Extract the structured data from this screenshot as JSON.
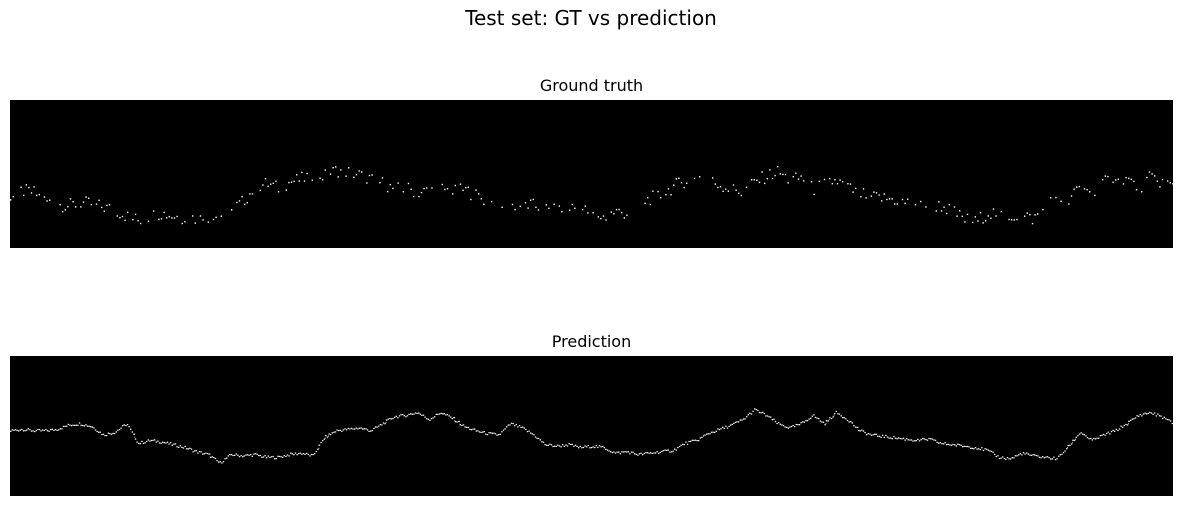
{
  "figure_title": "Test set: GT vs prediction",
  "colors": {
    "background": "#000000",
    "trace": "#ffffff"
  },
  "chart_data": [
    {
      "type": "heatmap",
      "title": "Ground truth",
      "style": "sparse-dots",
      "xlim": [
        0,
        1
      ],
      "ylim": [
        0,
        1
      ],
      "grid": false,
      "y_is_height_from_bottom": true,
      "profile": [
        [
          0.0,
          0.36
        ],
        [
          0.01,
          0.39
        ],
        [
          0.02,
          0.38
        ],
        [
          0.03,
          0.32
        ],
        [
          0.04,
          0.3
        ],
        [
          0.05,
          0.29
        ],
        [
          0.06,
          0.31
        ],
        [
          0.07,
          0.3
        ],
        [
          0.08,
          0.28
        ],
        [
          0.09,
          0.26
        ],
        [
          0.1,
          0.22
        ],
        [
          0.11,
          0.19
        ],
        [
          0.12,
          0.22
        ],
        [
          0.13,
          0.24
        ],
        [
          0.14,
          0.22
        ],
        [
          0.15,
          0.21
        ],
        [
          0.16,
          0.2
        ],
        [
          0.17,
          0.2
        ],
        [
          0.18,
          0.22
        ],
        [
          0.19,
          0.26
        ],
        [
          0.2,
          0.32
        ],
        [
          0.21,
          0.41
        ],
        [
          0.22,
          0.44
        ],
        [
          0.23,
          0.41
        ],
        [
          0.24,
          0.45
        ],
        [
          0.25,
          0.47
        ],
        [
          0.26,
          0.5
        ],
        [
          0.27,
          0.49
        ],
        [
          0.28,
          0.53
        ],
        [
          0.29,
          0.52
        ],
        [
          0.3,
          0.5
        ],
        [
          0.31,
          0.47
        ],
        [
          0.32,
          0.44
        ],
        [
          0.33,
          0.4
        ],
        [
          0.34,
          0.41
        ],
        [
          0.35,
          0.38
        ],
        [
          0.36,
          0.39
        ],
        [
          0.37,
          0.41
        ],
        [
          0.38,
          0.38
        ],
        [
          0.39,
          0.4
        ],
        [
          0.4,
          0.36
        ],
        [
          0.41,
          0.32
        ],
        [
          0.42,
          0.3
        ],
        [
          0.43,
          0.29
        ],
        [
          0.44,
          0.3
        ],
        [
          0.45,
          0.29
        ],
        [
          0.46,
          0.27
        ],
        [
          0.47,
          0.25
        ],
        [
          0.48,
          0.28
        ],
        [
          0.49,
          0.27
        ],
        [
          0.5,
          0.24
        ],
        [
          0.51,
          0.21
        ],
        [
          0.52,
          0.25
        ],
        [
          0.53,
          0.24
        ],
        [
          0.54,
          0.3
        ],
        [
          0.55,
          0.34
        ],
        [
          0.56,
          0.36
        ],
        [
          0.57,
          0.42
        ],
        [
          0.58,
          0.46
        ],
        [
          0.59,
          0.49
        ],
        [
          0.6,
          0.46
        ],
        [
          0.61,
          0.43
        ],
        [
          0.62,
          0.4
        ],
        [
          0.63,
          0.38
        ],
        [
          0.64,
          0.45
        ],
        [
          0.65,
          0.49
        ],
        [
          0.66,
          0.52
        ],
        [
          0.67,
          0.46
        ],
        [
          0.68,
          0.48
        ],
        [
          0.69,
          0.4
        ],
        [
          0.7,
          0.44
        ],
        [
          0.71,
          0.46
        ],
        [
          0.72,
          0.41
        ],
        [
          0.73,
          0.37
        ],
        [
          0.74,
          0.35
        ],
        [
          0.75,
          0.34
        ],
        [
          0.76,
          0.33
        ],
        [
          0.77,
          0.31
        ],
        [
          0.78,
          0.3
        ],
        [
          0.79,
          0.29
        ],
        [
          0.8,
          0.29
        ],
        [
          0.81,
          0.25
        ],
        [
          0.82,
          0.2
        ],
        [
          0.83,
          0.18
        ],
        [
          0.84,
          0.24
        ],
        [
          0.85,
          0.24
        ],
        [
          0.86,
          0.22
        ],
        [
          0.87,
          0.22
        ],
        [
          0.88,
          0.2
        ],
        [
          0.89,
          0.29
        ],
        [
          0.9,
          0.36
        ],
        [
          0.91,
          0.32
        ],
        [
          0.92,
          0.43
        ],
        [
          0.93,
          0.39
        ],
        [
          0.94,
          0.44
        ],
        [
          0.95,
          0.5
        ],
        [
          0.96,
          0.47
        ],
        [
          0.97,
          0.41
        ],
        [
          0.98,
          0.48
        ],
        [
          0.99,
          0.45
        ],
        [
          1.0,
          0.42
        ]
      ]
    },
    {
      "type": "heatmap",
      "title": "Prediction",
      "style": "connected-trace",
      "xlim": [
        0,
        1
      ],
      "ylim": [
        0,
        1
      ],
      "grid": false,
      "y_is_height_from_bottom": true,
      "profile": [
        [
          0.0,
          0.47
        ],
        [
          0.01,
          0.48
        ],
        [
          0.02,
          0.47
        ],
        [
          0.03,
          0.47
        ],
        [
          0.04,
          0.48
        ],
        [
          0.05,
          0.51
        ],
        [
          0.06,
          0.52
        ],
        [
          0.07,
          0.5
        ],
        [
          0.08,
          0.44
        ],
        [
          0.09,
          0.46
        ],
        [
          0.1,
          0.52
        ],
        [
          0.11,
          0.38
        ],
        [
          0.12,
          0.4
        ],
        [
          0.13,
          0.39
        ],
        [
          0.14,
          0.37
        ],
        [
          0.15,
          0.35
        ],
        [
          0.16,
          0.32
        ],
        [
          0.17,
          0.3
        ],
        [
          0.18,
          0.24
        ],
        [
          0.19,
          0.3
        ],
        [
          0.2,
          0.29
        ],
        [
          0.21,
          0.3
        ],
        [
          0.22,
          0.28
        ],
        [
          0.23,
          0.28
        ],
        [
          0.24,
          0.3
        ],
        [
          0.25,
          0.31
        ],
        [
          0.26,
          0.29
        ],
        [
          0.27,
          0.42
        ],
        [
          0.28,
          0.47
        ],
        [
          0.29,
          0.48
        ],
        [
          0.3,
          0.49
        ],
        [
          0.31,
          0.47
        ],
        [
          0.32,
          0.52
        ],
        [
          0.33,
          0.57
        ],
        [
          0.34,
          0.58
        ],
        [
          0.35,
          0.6
        ],
        [
          0.36,
          0.55
        ],
        [
          0.37,
          0.6
        ],
        [
          0.38,
          0.56
        ],
        [
          0.39,
          0.5
        ],
        [
          0.4,
          0.47
        ],
        [
          0.41,
          0.45
        ],
        [
          0.42,
          0.44
        ],
        [
          0.43,
          0.52
        ],
        [
          0.44,
          0.49
        ],
        [
          0.45,
          0.44
        ],
        [
          0.46,
          0.37
        ],
        [
          0.47,
          0.36
        ],
        [
          0.48,
          0.37
        ],
        [
          0.49,
          0.35
        ],
        [
          0.5,
          0.36
        ],
        [
          0.51,
          0.35
        ],
        [
          0.52,
          0.31
        ],
        [
          0.53,
          0.32
        ],
        [
          0.54,
          0.3
        ],
        [
          0.55,
          0.31
        ],
        [
          0.56,
          0.32
        ],
        [
          0.57,
          0.33
        ],
        [
          0.58,
          0.38
        ],
        [
          0.59,
          0.4
        ],
        [
          0.6,
          0.45
        ],
        [
          0.61,
          0.48
        ],
        [
          0.62,
          0.51
        ],
        [
          0.63,
          0.55
        ],
        [
          0.64,
          0.62
        ],
        [
          0.65,
          0.58
        ],
        [
          0.66,
          0.52
        ],
        [
          0.67,
          0.49
        ],
        [
          0.68,
          0.52
        ],
        [
          0.69,
          0.58
        ],
        [
          0.7,
          0.52
        ],
        [
          0.71,
          0.6
        ],
        [
          0.72,
          0.55
        ],
        [
          0.73,
          0.47
        ],
        [
          0.74,
          0.44
        ],
        [
          0.75,
          0.43
        ],
        [
          0.76,
          0.42
        ],
        [
          0.77,
          0.41
        ],
        [
          0.78,
          0.4
        ],
        [
          0.79,
          0.41
        ],
        [
          0.8,
          0.38
        ],
        [
          0.81,
          0.37
        ],
        [
          0.82,
          0.36
        ],
        [
          0.83,
          0.35
        ],
        [
          0.84,
          0.33
        ],
        [
          0.85,
          0.28
        ],
        [
          0.86,
          0.27
        ],
        [
          0.87,
          0.31
        ],
        [
          0.88,
          0.29
        ],
        [
          0.89,
          0.28
        ],
        [
          0.9,
          0.27
        ],
        [
          0.91,
          0.36
        ],
        [
          0.92,
          0.46
        ],
        [
          0.93,
          0.4
        ],
        [
          0.94,
          0.44
        ],
        [
          0.95,
          0.47
        ],
        [
          0.96,
          0.52
        ],
        [
          0.97,
          0.58
        ],
        [
          0.98,
          0.6
        ],
        [
          0.99,
          0.57
        ],
        [
          1.0,
          0.52
        ]
      ]
    }
  ]
}
